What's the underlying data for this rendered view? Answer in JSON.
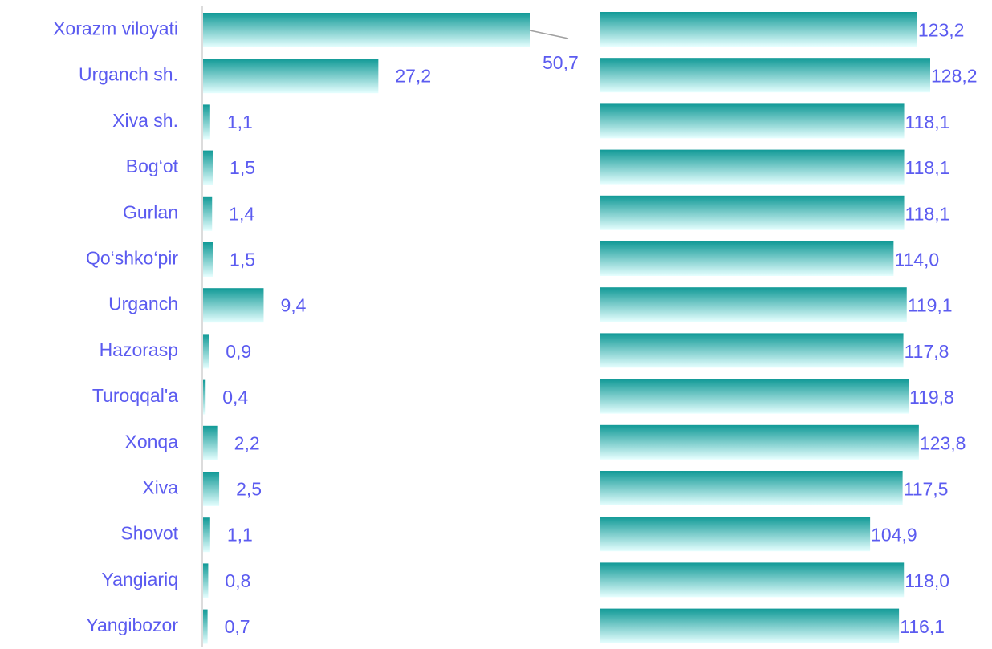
{
  "chart_data": [
    {
      "type": "bar",
      "orientation": "horizontal",
      "categories": [
        "Xorazm viloyati",
        "Urganch sh.",
        "Xiva sh.",
        "Bog‘ot",
        "Gurlan",
        "Qo‘shko‘pir",
        "Urganch",
        "Hazorasp",
        "Turoqqal'a",
        "Xonqa",
        "Xiva",
        "Shovot",
        "Yangiariq",
        "Yangibozor"
      ],
      "value_labels": [
        "50,7",
        "27,2",
        "1,1",
        "1,5",
        "1,4",
        "1,5",
        "9,4",
        "0,9",
        "0,4",
        "2,2",
        "2,5",
        "1,1",
        "0,8",
        "0,7"
      ],
      "values": [
        50.7,
        27.2,
        1.1,
        1.5,
        1.4,
        1.5,
        9.4,
        0.9,
        0.4,
        2.2,
        2.5,
        1.1,
        0.8,
        0.7
      ],
      "xlim": [
        0,
        50.7
      ],
      "grid": false,
      "bar_colors": [
        "#119a97",
        "#e6ffff"
      ]
    },
    {
      "type": "bar",
      "orientation": "horizontal",
      "categories": [
        "Xorazm viloyati",
        "Urganch sh.",
        "Xiva sh.",
        "Bog‘ot",
        "Gurlan",
        "Qo‘shko‘pir",
        "Urganch",
        "Hazorasp",
        "Turoqqal'a",
        "Xonqa",
        "Xiva",
        "Shovot",
        "Yangiariq",
        "Yangibozor"
      ],
      "value_labels": [
        "123,2",
        "128,2",
        "118,1",
        "118,1",
        "118,1",
        "114,0",
        "119,1",
        "117,8",
        "119,8",
        "123,8",
        "117,5",
        "104,9",
        "118,0",
        "116,1"
      ],
      "values": [
        123.2,
        128.2,
        118.1,
        118.1,
        118.1,
        114.0,
        119.1,
        117.8,
        119.8,
        123.8,
        117.5,
        104.9,
        118.0,
        116.1
      ],
      "xlim": [
        0,
        128.2
      ],
      "grid": false,
      "bar_colors": [
        "#119a97",
        "#e6ffff"
      ]
    }
  ]
}
